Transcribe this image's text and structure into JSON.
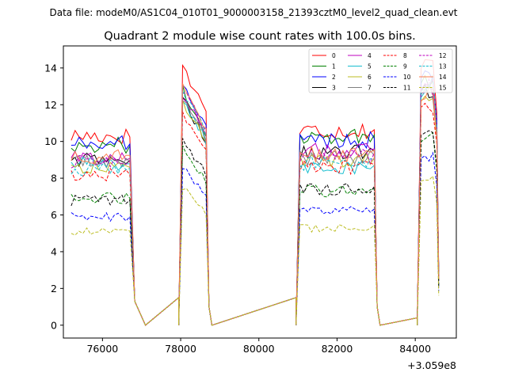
{
  "header": {
    "data_file": "Data file: modeM0/AS1C04_010T01_9000003158_21393cztM0_level2_quad_clean.evt"
  },
  "chart_data": {
    "type": "line",
    "title": "Quadrant 2 module wise count rates with 100.0s bins.",
    "xlabel": "",
    "ylabel": "",
    "x_offset_label": "+3.059e8",
    "xlim": [
      75000,
      85050
    ],
    "ylim": [
      -0.7,
      15.2
    ],
    "x_ticks": [
      76000,
      78000,
      80000,
      82000,
      84000
    ],
    "y_ticks": [
      0,
      2,
      4,
      6,
      8,
      10,
      12,
      14
    ],
    "legend_position": "top-right",
    "legend": [
      "0",
      "1",
      "2",
      "3",
      "4",
      "5",
      "6",
      "7",
      "8",
      "9",
      "10",
      "11",
      "12",
      "13",
      "14",
      "15"
    ],
    "series_styles": [
      {
        "color": "#ff0000",
        "dash": "solid"
      },
      {
        "color": "#008000",
        "dash": "solid"
      },
      {
        "color": "#0000ff",
        "dash": "solid"
      },
      {
        "color": "#000000",
        "dash": "solid"
      },
      {
        "color": "#bf00bf",
        "dash": "solid"
      },
      {
        "color": "#17becf",
        "dash": "solid"
      },
      {
        "color": "#bcbd22",
        "dash": "solid"
      },
      {
        "color": "#7f7f7f",
        "dash": "solid"
      },
      {
        "color": "#ff0000",
        "dash": "dashed"
      },
      {
        "color": "#008000",
        "dash": "dashed"
      },
      {
        "color": "#0000ff",
        "dash": "dashed"
      },
      {
        "color": "#000000",
        "dash": "dashed"
      },
      {
        "color": "#bf00bf",
        "dash": "dashed"
      },
      {
        "color": "#17becf",
        "dash": "dashed"
      },
      {
        "color": "#ff7f50",
        "dash": "solid"
      },
      {
        "color": "#bcbd22",
        "dash": "dashed"
      }
    ],
    "segments": [
      {
        "start": 75200,
        "end": 76750,
        "drop_to": 77100
      },
      {
        "start": 78050,
        "end": 78650,
        "drop_to": 78800
      },
      {
        "start": 81050,
        "end": 82950,
        "drop_to": 83100
      },
      {
        "start": 84150,
        "end": 84550,
        "drop_to": null
      }
    ],
    "zero_ranges": [
      [
        77100,
        77950
      ],
      [
        78800,
        80950
      ],
      [
        83100,
        84050
      ]
    ],
    "series_levels": [
      {
        "s1": 10.3,
        "s2": 14.1,
        "s3": 10.6,
        "s4": 14.1
      },
      {
        "s1": 9.8,
        "s2": 12.8,
        "s3": 10.3,
        "s4": 13.3
      },
      {
        "s1": 9.9,
        "s2": 13.2,
        "s3": 10.1,
        "s4": 13.6
      },
      {
        "s1": 9.0,
        "s2": 12.3,
        "s3": 9.4,
        "s4": 12.9
      },
      {
        "s1": 9.1,
        "s2": 12.6,
        "s3": 9.5,
        "s4": 13.0
      },
      {
        "s1": 8.8,
        "s2": 12.2,
        "s3": 8.6,
        "s4": 12.6
      },
      {
        "s1": 8.6,
        "s2": 12.1,
        "s3": 9.0,
        "s4": 12.4
      },
      {
        "s1": 8.9,
        "s2": 12.4,
        "s3": 9.1,
        "s4": 12.8
      },
      {
        "s1": 8.2,
        "s2": 11.6,
        "s3": 8.6,
        "s4": 12.1
      },
      {
        "s1": 6.9,
        "s2": 9.6,
        "s3": 7.3,
        "s4": 10.2
      },
      {
        "s1": 5.9,
        "s2": 8.6,
        "s3": 6.2,
        "s4": 9.3
      },
      {
        "s1": 6.8,
        "s2": 10.1,
        "s3": 7.4,
        "s4": 10.6
      },
      {
        "s1": 8.9,
        "s2": 12.9,
        "s3": 9.2,
        "s4": 12.9
      },
      {
        "s1": 8.5,
        "s2": 12.8,
        "s3": 8.8,
        "s4": 13.1
      },
      {
        "s1": 9.2,
        "s2": 13.0,
        "s3": 9.3,
        "s4": 12.6
      },
      {
        "s1": 5.1,
        "s2": 7.5,
        "s3": 5.3,
        "s4": 8.1
      }
    ]
  }
}
